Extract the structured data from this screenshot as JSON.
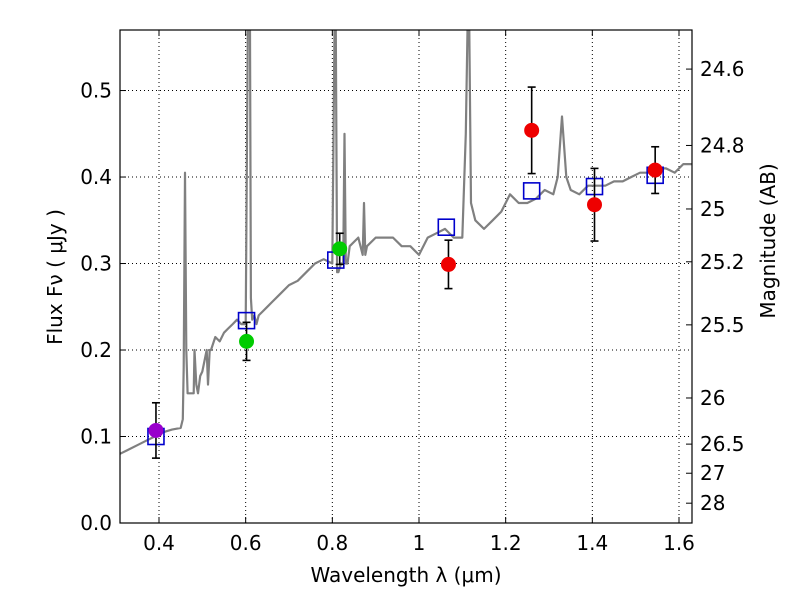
{
  "chart_data": {
    "type": "scatter",
    "xlabel": "Wavelength  λ (μm)",
    "ylabel": "Flux  Fν  ( μJy )",
    "ylabel_right": "Magnitude (AB)",
    "xlim": [
      0.31,
      1.63
    ],
    "ylim": [
      0.0,
      0.57
    ],
    "grid": true,
    "x_ticks": [
      {
        "value": 0.4,
        "label": "0.4"
      },
      {
        "value": 0.6,
        "label": "0.6"
      },
      {
        "value": 0.8,
        "label": "0.8"
      },
      {
        "value": 1.0,
        "label": "1"
      },
      {
        "value": 1.2,
        "label": "1.2"
      },
      {
        "value": 1.4,
        "label": "1.4"
      },
      {
        "value": 1.6,
        "label": "1.6"
      }
    ],
    "y_ticks": [
      {
        "value": 0.0,
        "label": "0.0"
      },
      {
        "value": 0.1,
        "label": "0.1"
      },
      {
        "value": 0.2,
        "label": "0.2"
      },
      {
        "value": 0.3,
        "label": "0.3"
      },
      {
        "value": 0.4,
        "label": "0.4"
      },
      {
        "value": 0.5,
        "label": "0.5"
      }
    ],
    "mag_ticks": [
      {
        "value": 24.6,
        "label": "24.6"
      },
      {
        "value": 24.8,
        "label": "24.8"
      },
      {
        "value": 25.0,
        "label": "25"
      },
      {
        "value": 25.2,
        "label": "25.2"
      },
      {
        "value": 25.5,
        "label": "25.5"
      },
      {
        "value": 26.0,
        "label": "26"
      },
      {
        "value": 26.5,
        "label": "26.5"
      },
      {
        "value": 27.0,
        "label": "27"
      },
      {
        "value": 28.0,
        "label": "28"
      }
    ],
    "series": [
      {
        "kind": "line",
        "color": "#808080",
        "x": [
          0.31,
          0.33,
          0.35,
          0.37,
          0.39,
          0.41,
          0.43,
          0.45,
          0.455,
          0.457,
          0.46,
          0.463,
          0.466,
          0.48,
          0.482,
          0.486,
          0.49,
          0.495,
          0.5,
          0.51,
          0.513,
          0.517,
          0.52,
          0.53,
          0.54,
          0.55,
          0.56,
          0.57,
          0.58,
          0.59,
          0.6,
          0.605,
          0.61,
          0.612,
          0.615,
          0.62,
          0.625,
          0.63,
          0.64,
          0.65,
          0.66,
          0.68,
          0.7,
          0.72,
          0.74,
          0.76,
          0.78,
          0.8,
          0.805,
          0.808,
          0.811,
          0.814,
          0.82,
          0.825,
          0.828,
          0.831,
          0.835,
          0.84,
          0.86,
          0.87,
          0.873,
          0.876,
          0.88,
          0.9,
          0.92,
          0.94,
          0.96,
          0.98,
          1.0,
          1.02,
          1.04,
          1.06,
          1.08,
          1.1,
          1.108,
          1.112,
          1.116,
          1.12,
          1.13,
          1.15,
          1.17,
          1.19,
          1.21,
          1.23,
          1.25,
          1.27,
          1.29,
          1.31,
          1.32,
          1.33,
          1.34,
          1.35,
          1.37,
          1.39,
          1.41,
          1.43,
          1.45,
          1.47,
          1.49,
          1.51,
          1.53,
          1.55,
          1.57,
          1.59,
          1.61,
          1.63
        ],
        "y": [
          0.08,
          0.085,
          0.09,
          0.095,
          0.1,
          0.105,
          0.108,
          0.11,
          0.12,
          0.18,
          0.405,
          0.2,
          0.15,
          0.15,
          0.2,
          0.16,
          0.15,
          0.17,
          0.175,
          0.2,
          0.16,
          0.2,
          0.2,
          0.215,
          0.21,
          0.22,
          0.225,
          0.23,
          0.235,
          0.23,
          0.23,
          0.57,
          0.57,
          0.26,
          0.235,
          0.24,
          0.23,
          0.24,
          0.245,
          0.25,
          0.255,
          0.265,
          0.275,
          0.28,
          0.29,
          0.3,
          0.305,
          0.3,
          0.57,
          0.57,
          0.29,
          0.29,
          0.3,
          0.3,
          0.45,
          0.3,
          0.3,
          0.32,
          0.33,
          0.31,
          0.37,
          0.31,
          0.32,
          0.33,
          0.33,
          0.33,
          0.32,
          0.32,
          0.31,
          0.33,
          0.335,
          0.34,
          0.33,
          0.33,
          0.45,
          0.57,
          0.57,
          0.37,
          0.35,
          0.34,
          0.35,
          0.36,
          0.38,
          0.37,
          0.37,
          0.375,
          0.385,
          0.38,
          0.4,
          0.47,
          0.4,
          0.385,
          0.38,
          0.39,
          0.39,
          0.39,
          0.395,
          0.395,
          0.4,
          0.405,
          0.405,
          0.41,
          0.41,
          0.405,
          0.415,
          0.415
        ]
      },
      {
        "kind": "squares",
        "color": "#0000cc",
        "x": [
          0.393,
          0.602,
          0.808,
          1.063,
          1.26,
          1.405,
          1.545
        ],
        "y": [
          0.1,
          0.234,
          0.304,
          0.342,
          0.384,
          0.389,
          0.402
        ]
      },
      {
        "kind": "points",
        "x": [
          0.393,
          0.602,
          0.817,
          1.068,
          1.26,
          1.405,
          1.545
        ],
        "y": [
          0.107,
          0.21,
          0.317,
          0.299,
          0.454,
          0.368,
          0.408
        ],
        "err": [
          0.032,
          0.022,
          0.018,
          0.028,
          0.05,
          0.042,
          0.027
        ],
        "colors": [
          "#9900cc",
          "#00cc00",
          "#00cc00",
          "#ee0000",
          "#ee0000",
          "#ee0000",
          "#ee0000"
        ]
      }
    ]
  }
}
